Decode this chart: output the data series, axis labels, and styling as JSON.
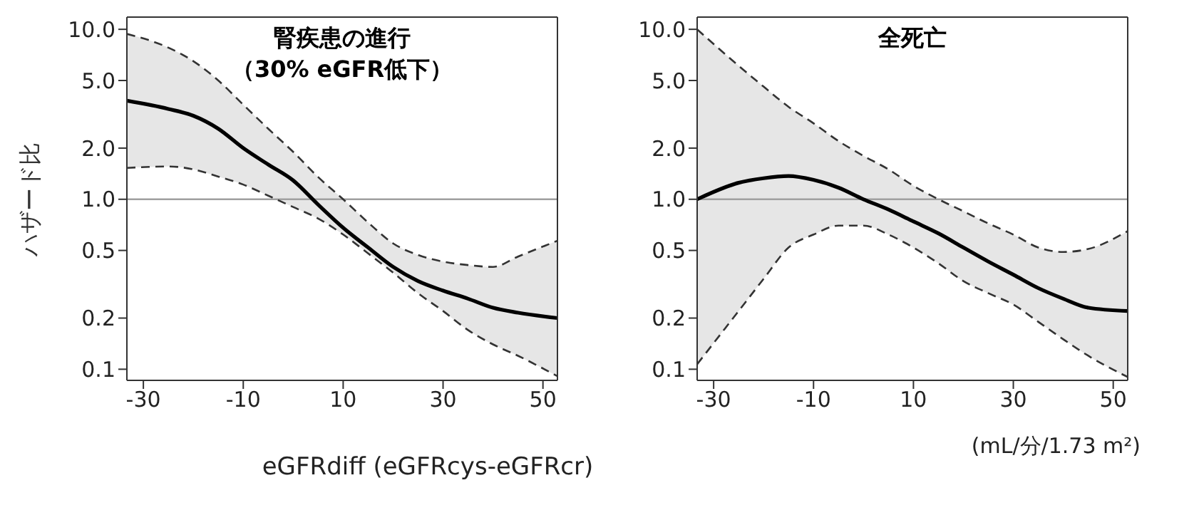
{
  "chart_data": [
    {
      "type": "line",
      "title": "腎疾患の進行",
      "subtitle": "（30% eGFR低下）",
      "xlabel": "eGFRdiff (eGFRcys-eGFRcr)",
      "ylabel": "ハザード比",
      "log": "y",
      "grid": false,
      "marker": "none",
      "line_style": "solid",
      "xlim": [
        -33.3,
        52.9
      ],
      "xticks": [
        -30,
        -10,
        10,
        30,
        50
      ],
      "ylim": [
        0.086,
        11.8
      ],
      "yticks": [
        {
          "value": 10,
          "label": "10.0"
        },
        {
          "value": 5,
          "label": "5.0"
        },
        {
          "value": 2,
          "label": "2.0"
        },
        {
          "value": 1,
          "label": "1.0"
        },
        0.5,
        0.2,
        0.1
      ],
      "x": [
        -33.3,
        -25,
        -20,
        -15,
        -10,
        -5,
        0,
        5,
        10,
        15,
        20,
        25,
        30,
        35,
        40,
        45,
        52.9
      ],
      "ref_lines": [
        {
          "axis": "y",
          "value": 1,
          "color": "#a0a0a0"
        }
      ],
      "series": [
        {
          "color": "#000000",
          "values": [
            3.8,
            3.4,
            3.1,
            2.6,
            2.0,
            1.6,
            1.29,
            0.93,
            0.68,
            0.52,
            0.4,
            0.33,
            0.29,
            0.26,
            0.23,
            0.215,
            0.2
          ],
          "lower": [
            1.53,
            1.56,
            1.5,
            1.36,
            1.22,
            1.05,
            0.9,
            0.77,
            0.62,
            0.48,
            0.37,
            0.28,
            0.22,
            0.17,
            0.14,
            0.12,
            0.091
          ],
          "upper": [
            9.4,
            7.8,
            6.5,
            5.0,
            3.6,
            2.6,
            1.9,
            1.35,
            1.0,
            0.73,
            0.55,
            0.47,
            0.43,
            0.41,
            0.4,
            0.46,
            0.57
          ]
        },
        {
          "color": "#333333",
          "line_style": "dashed",
          "values": [
            1.53,
            1.56,
            1.5,
            1.36,
            1.22,
            1.05,
            0.9,
            0.77,
            0.62,
            0.48,
            0.37,
            0.28,
            0.22,
            0.17,
            0.14,
            0.12,
            0.091
          ]
        },
        {
          "color": "#333333",
          "line_style": "dashed",
          "values": [
            9.4,
            7.8,
            6.5,
            5.0,
            3.6,
            2.6,
            1.9,
            1.35,
            1.0,
            0.73,
            0.55,
            0.47,
            0.43,
            0.41,
            0.4,
            0.46,
            0.57
          ]
        }
      ]
    },
    {
      "type": "line",
      "title": "全死亡",
      "xlabel": "(mL/分/1.73 m²)",
      "log": "y",
      "grid": false,
      "marker": "none",
      "line_style": "solid",
      "xlim": [
        -33.3,
        52.9
      ],
      "xticks": [
        -30,
        -10,
        10,
        30,
        50
      ],
      "ylim": [
        0.086,
        11.8
      ],
      "yticks": [
        {
          "value": 10,
          "label": "10.0"
        },
        {
          "value": 5,
          "label": "5.0"
        },
        {
          "value": 2,
          "label": "2.0"
        },
        {
          "value": 1,
          "label": "1.0"
        },
        0.5,
        0.2,
        0.1
      ],
      "x": [
        -33.3,
        -25,
        -20,
        -15,
        -10,
        -5,
        0,
        5,
        10,
        15,
        20,
        25,
        30,
        35,
        40,
        45,
        52.9
      ],
      "ref_lines": [
        {
          "axis": "y",
          "value": 1,
          "color": "#a0a0a0"
        }
      ],
      "series": [
        {
          "color": "#000000",
          "values": [
            1.0,
            1.25,
            1.33,
            1.37,
            1.3,
            1.17,
            1.0,
            0.87,
            0.74,
            0.63,
            0.52,
            0.43,
            0.36,
            0.3,
            0.26,
            0.23,
            0.22
          ],
          "lower": [
            0.107,
            0.22,
            0.34,
            0.52,
            0.62,
            0.7,
            0.7,
            0.62,
            0.52,
            0.42,
            0.33,
            0.28,
            0.24,
            0.19,
            0.15,
            0.12,
            0.09
          ],
          "upper": [
            10,
            6.1,
            4.6,
            3.5,
            2.8,
            2.2,
            1.8,
            1.5,
            1.2,
            1.0,
            0.85,
            0.72,
            0.62,
            0.52,
            0.49,
            0.51,
            0.65
          ]
        },
        {
          "color": "#333333",
          "line_style": "dashed",
          "values": [
            0.107,
            0.22,
            0.34,
            0.52,
            0.62,
            0.7,
            0.7,
            0.62,
            0.52,
            0.42,
            0.33,
            0.28,
            0.24,
            0.19,
            0.15,
            0.12,
            0.09
          ]
        },
        {
          "color": "#333333",
          "line_style": "dashed",
          "values": [
            10,
            6.1,
            4.6,
            3.5,
            2.8,
            2.2,
            1.8,
            1.5,
            1.2,
            1.0,
            0.85,
            0.72,
            0.62,
            0.52,
            0.49,
            0.51,
            0.65
          ]
        }
      ]
    }
  ]
}
